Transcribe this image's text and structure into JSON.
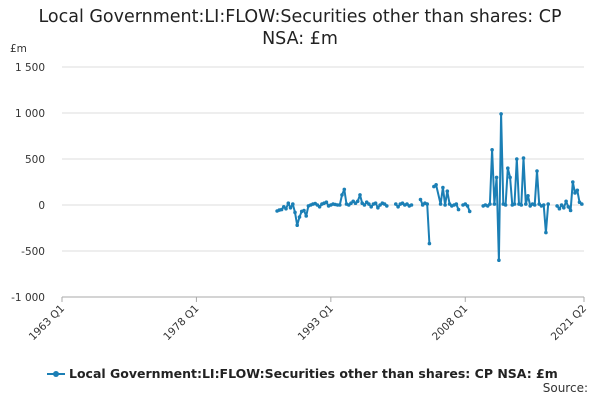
{
  "title_line1": "Local Government:LI:FLOW:Securities other than shares: CP",
  "title_line2": "NSA: £m",
  "unit_label": "£m",
  "legend_label": "Local Government:LI:FLOW:Securities other than shares: CP NSA: £m",
  "source_label": "Source:",
  "colors": {
    "series": "#1b7fb5",
    "grid": "#dddddd",
    "axis": "#aaaaaa"
  },
  "chart_data": {
    "type": "line",
    "ylim": [
      -1000,
      1500
    ],
    "yticks": [
      {
        "v": 1500,
        "label": "1 500"
      },
      {
        "v": 1000,
        "label": "1 000"
      },
      {
        "v": 500,
        "label": "500"
      },
      {
        "v": 0,
        "label": "0"
      },
      {
        "v": -500,
        "label": "-500"
      },
      {
        "v": -1000,
        "label": "-1 000"
      }
    ],
    "xlim": [
      1963.0,
      2021.25
    ],
    "xticks": [
      {
        "v": 1963.0,
        "label": "1963 Q1"
      },
      {
        "v": 1978.0,
        "label": "1978 Q1"
      },
      {
        "v": 1993.0,
        "label": "1993 Q1"
      },
      {
        "v": 2008.0,
        "label": "2008 Q1"
      },
      {
        "v": 2021.25,
        "label": "2021 Q2"
      }
    ],
    "grid": true,
    "legend_position": "bottom",
    "series": [
      {
        "name": "Local Government:LI:FLOW:Securities other than shares: CP NSA: £m",
        "segments": [
          [
            [
              1987.0,
              -65
            ],
            [
              1987.25,
              -55
            ],
            [
              1987.5,
              -50
            ],
            [
              1987.75,
              -20
            ],
            [
              1988.0,
              -40
            ],
            [
              1988.25,
              20
            ],
            [
              1988.5,
              -30
            ],
            [
              1988.75,
              10
            ],
            [
              1989.0,
              -80
            ],
            [
              1989.25,
              -220
            ],
            [
              1989.5,
              -130
            ],
            [
              1989.75,
              -70
            ],
            [
              1990.0,
              -60
            ],
            [
              1990.25,
              -120
            ],
            [
              1990.5,
              -10
            ],
            [
              1990.75,
              0
            ],
            [
              1991.0,
              10
            ],
            [
              1991.25,
              15
            ],
            [
              1991.5,
              0
            ],
            [
              1991.75,
              -20
            ],
            [
              1992.0,
              10
            ],
            [
              1992.25,
              20
            ],
            [
              1992.5,
              30
            ],
            [
              1992.75,
              -10
            ],
            [
              1993.0,
              0
            ],
            [
              1993.25,
              10
            ],
            [
              1993.5,
              5
            ],
            [
              1993.75,
              0
            ],
            [
              1994.0,
              0
            ],
            [
              1994.25,
              110
            ],
            [
              1994.5,
              170
            ],
            [
              1994.75,
              10
            ],
            [
              1995.0,
              0
            ],
            [
              1995.25,
              20
            ],
            [
              1995.5,
              40
            ],
            [
              1995.75,
              20
            ],
            [
              1996.0,
              40
            ],
            [
              1996.25,
              110
            ],
            [
              1996.5,
              20
            ],
            [
              1996.75,
              0
            ],
            [
              1997.0,
              30
            ],
            [
              1997.25,
              10
            ],
            [
              1997.5,
              -20
            ],
            [
              1997.75,
              10
            ],
            [
              1998.0,
              20
            ],
            [
              1998.25,
              -30
            ],
            [
              1998.5,
              0
            ],
            [
              1998.75,
              20
            ],
            [
              1999.0,
              10
            ],
            [
              1999.25,
              -10
            ]
          ],
          [
            [
              2000.25,
              10
            ],
            [
              2000.5,
              -20
            ],
            [
              2000.75,
              10
            ],
            [
              2001.0,
              20
            ],
            [
              2001.25,
              0
            ],
            [
              2001.5,
              10
            ],
            [
              2001.75,
              -10
            ],
            [
              2002.0,
              0
            ]
          ],
          [
            [
              2003.0,
              60
            ],
            [
              2003.25,
              0
            ],
            [
              2003.5,
              20
            ],
            [
              2003.75,
              10
            ],
            [
              2004.0,
              -420
            ]
          ],
          [
            [
              2004.5,
              200
            ],
            [
              2004.75,
              220
            ],
            [
              2005.25,
              10
            ],
            [
              2005.5,
              190
            ],
            [
              2005.75,
              0
            ],
            [
              2006.0,
              150
            ],
            [
              2006.25,
              10
            ],
            [
              2006.5,
              -10
            ],
            [
              2006.75,
              0
            ],
            [
              2007.0,
              10
            ],
            [
              2007.25,
              -50
            ]
          ],
          [
            [
              2007.75,
              0
            ],
            [
              2008.0,
              10
            ],
            [
              2008.25,
              -10
            ],
            [
              2008.5,
              -70
            ]
          ],
          [
            [
              2010.0,
              -10
            ],
            [
              2010.25,
              0
            ],
            [
              2010.5,
              -10
            ],
            [
              2010.75,
              10
            ],
            [
              2011.0,
              600
            ],
            [
              2011.25,
              10
            ],
            [
              2011.5,
              300
            ],
            [
              2011.75,
              -600
            ],
            [
              2012.0,
              990
            ],
            [
              2012.25,
              10
            ],
            [
              2012.5,
              0
            ],
            [
              2012.75,
              400
            ],
            [
              2013.0,
              300
            ],
            [
              2013.25,
              0
            ],
            [
              2013.5,
              10
            ],
            [
              2013.75,
              500
            ],
            [
              2014.0,
              10
            ],
            [
              2014.25,
              0
            ],
            [
              2014.5,
              510
            ],
            [
              2014.75,
              10
            ],
            [
              2015.0,
              100
            ],
            [
              2015.25,
              -10
            ],
            [
              2015.5,
              10
            ],
            [
              2015.75,
              0
            ],
            [
              2016.0,
              370
            ],
            [
              2016.25,
              10
            ],
            [
              2016.5,
              -10
            ],
            [
              2016.75,
              0
            ],
            [
              2017.0,
              -300
            ],
            [
              2017.25,
              10
            ]
          ],
          [
            [
              2018.25,
              -10
            ],
            [
              2018.5,
              -40
            ],
            [
              2018.75,
              0
            ],
            [
              2019.0,
              -30
            ],
            [
              2019.25,
              40
            ],
            [
              2019.5,
              -20
            ],
            [
              2019.75,
              -60
            ],
            [
              2020.0,
              250
            ],
            [
              2020.25,
              130
            ],
            [
              2020.5,
              160
            ],
            [
              2020.75,
              30
            ],
            [
              2021.0,
              10
            ]
          ]
        ]
      }
    ]
  }
}
